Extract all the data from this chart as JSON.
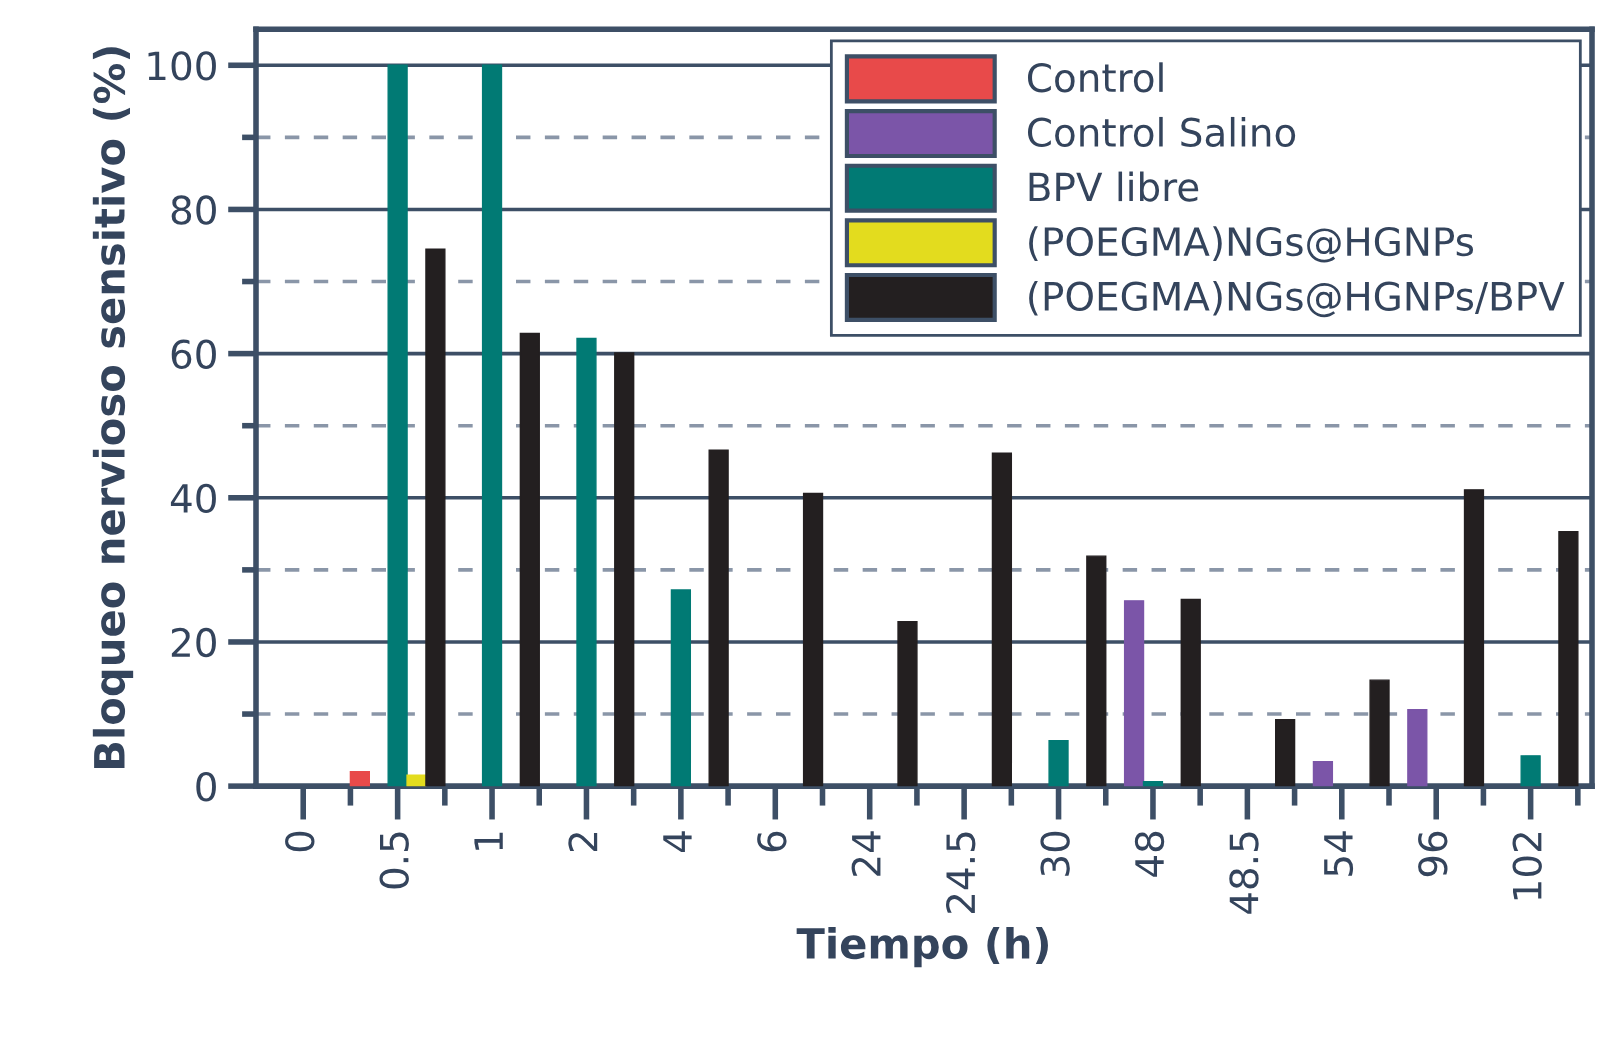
{
  "chart_data": {
    "type": "bar",
    "xlabel": "Tiempo (h)",
    "ylabel": "Bloqueo nervioso sensitivo (%)",
    "categories": [
      "0",
      "0.5",
      "1",
      "2",
      "4",
      "6",
      "24",
      "24.5",
      "30",
      "48",
      "48.5",
      "54",
      "96",
      "102"
    ],
    "series": [
      {
        "name": "Control",
        "color": "#e84a4a",
        "values": [
          null,
          2,
          null,
          null,
          null,
          null,
          null,
          null,
          null,
          null,
          null,
          null,
          null,
          null
        ]
      },
      {
        "name": "Control Salino",
        "color": "#7b55a8",
        "values": [
          null,
          null,
          null,
          null,
          null,
          null,
          null,
          null,
          null,
          25.7,
          null,
          3.4,
          10.6,
          null
        ]
      },
      {
        "name": "BPV libre",
        "color": "#017a74",
        "values": [
          null,
          100,
          100,
          62.1,
          27.2,
          null,
          null,
          null,
          6.3,
          0.6,
          null,
          null,
          null,
          4.2
        ]
      },
      {
        "name": "(POEGMA)NGs@HGNPs",
        "color": "#e3dc1e",
        "values": [
          null,
          1.5,
          null,
          null,
          null,
          null,
          null,
          null,
          null,
          null,
          null,
          null,
          null,
          null
        ]
      },
      {
        "name": "(POEGMA)NGs@HGNPs/BPV",
        "color": "#231f20",
        "values": [
          null,
          74.5,
          62.8,
          60.1,
          46.6,
          40.6,
          22.8,
          46.2,
          31.9,
          25.9,
          9.2,
          14.7,
          41.1,
          35.3
        ]
      }
    ],
    "ylim": [
      0,
      105
    ],
    "yticks": [
      0,
      {
        "value": 10,
        "label": null
      },
      20,
      {
        "value": 30,
        "label": null
      },
      40,
      {
        "value": 50,
        "label": null
      },
      60,
      {
        "value": 70,
        "label": null
      },
      80,
      {
        "value": 90,
        "label": null
      },
      100
    ],
    "grid": "y",
    "legend": "top right"
  }
}
